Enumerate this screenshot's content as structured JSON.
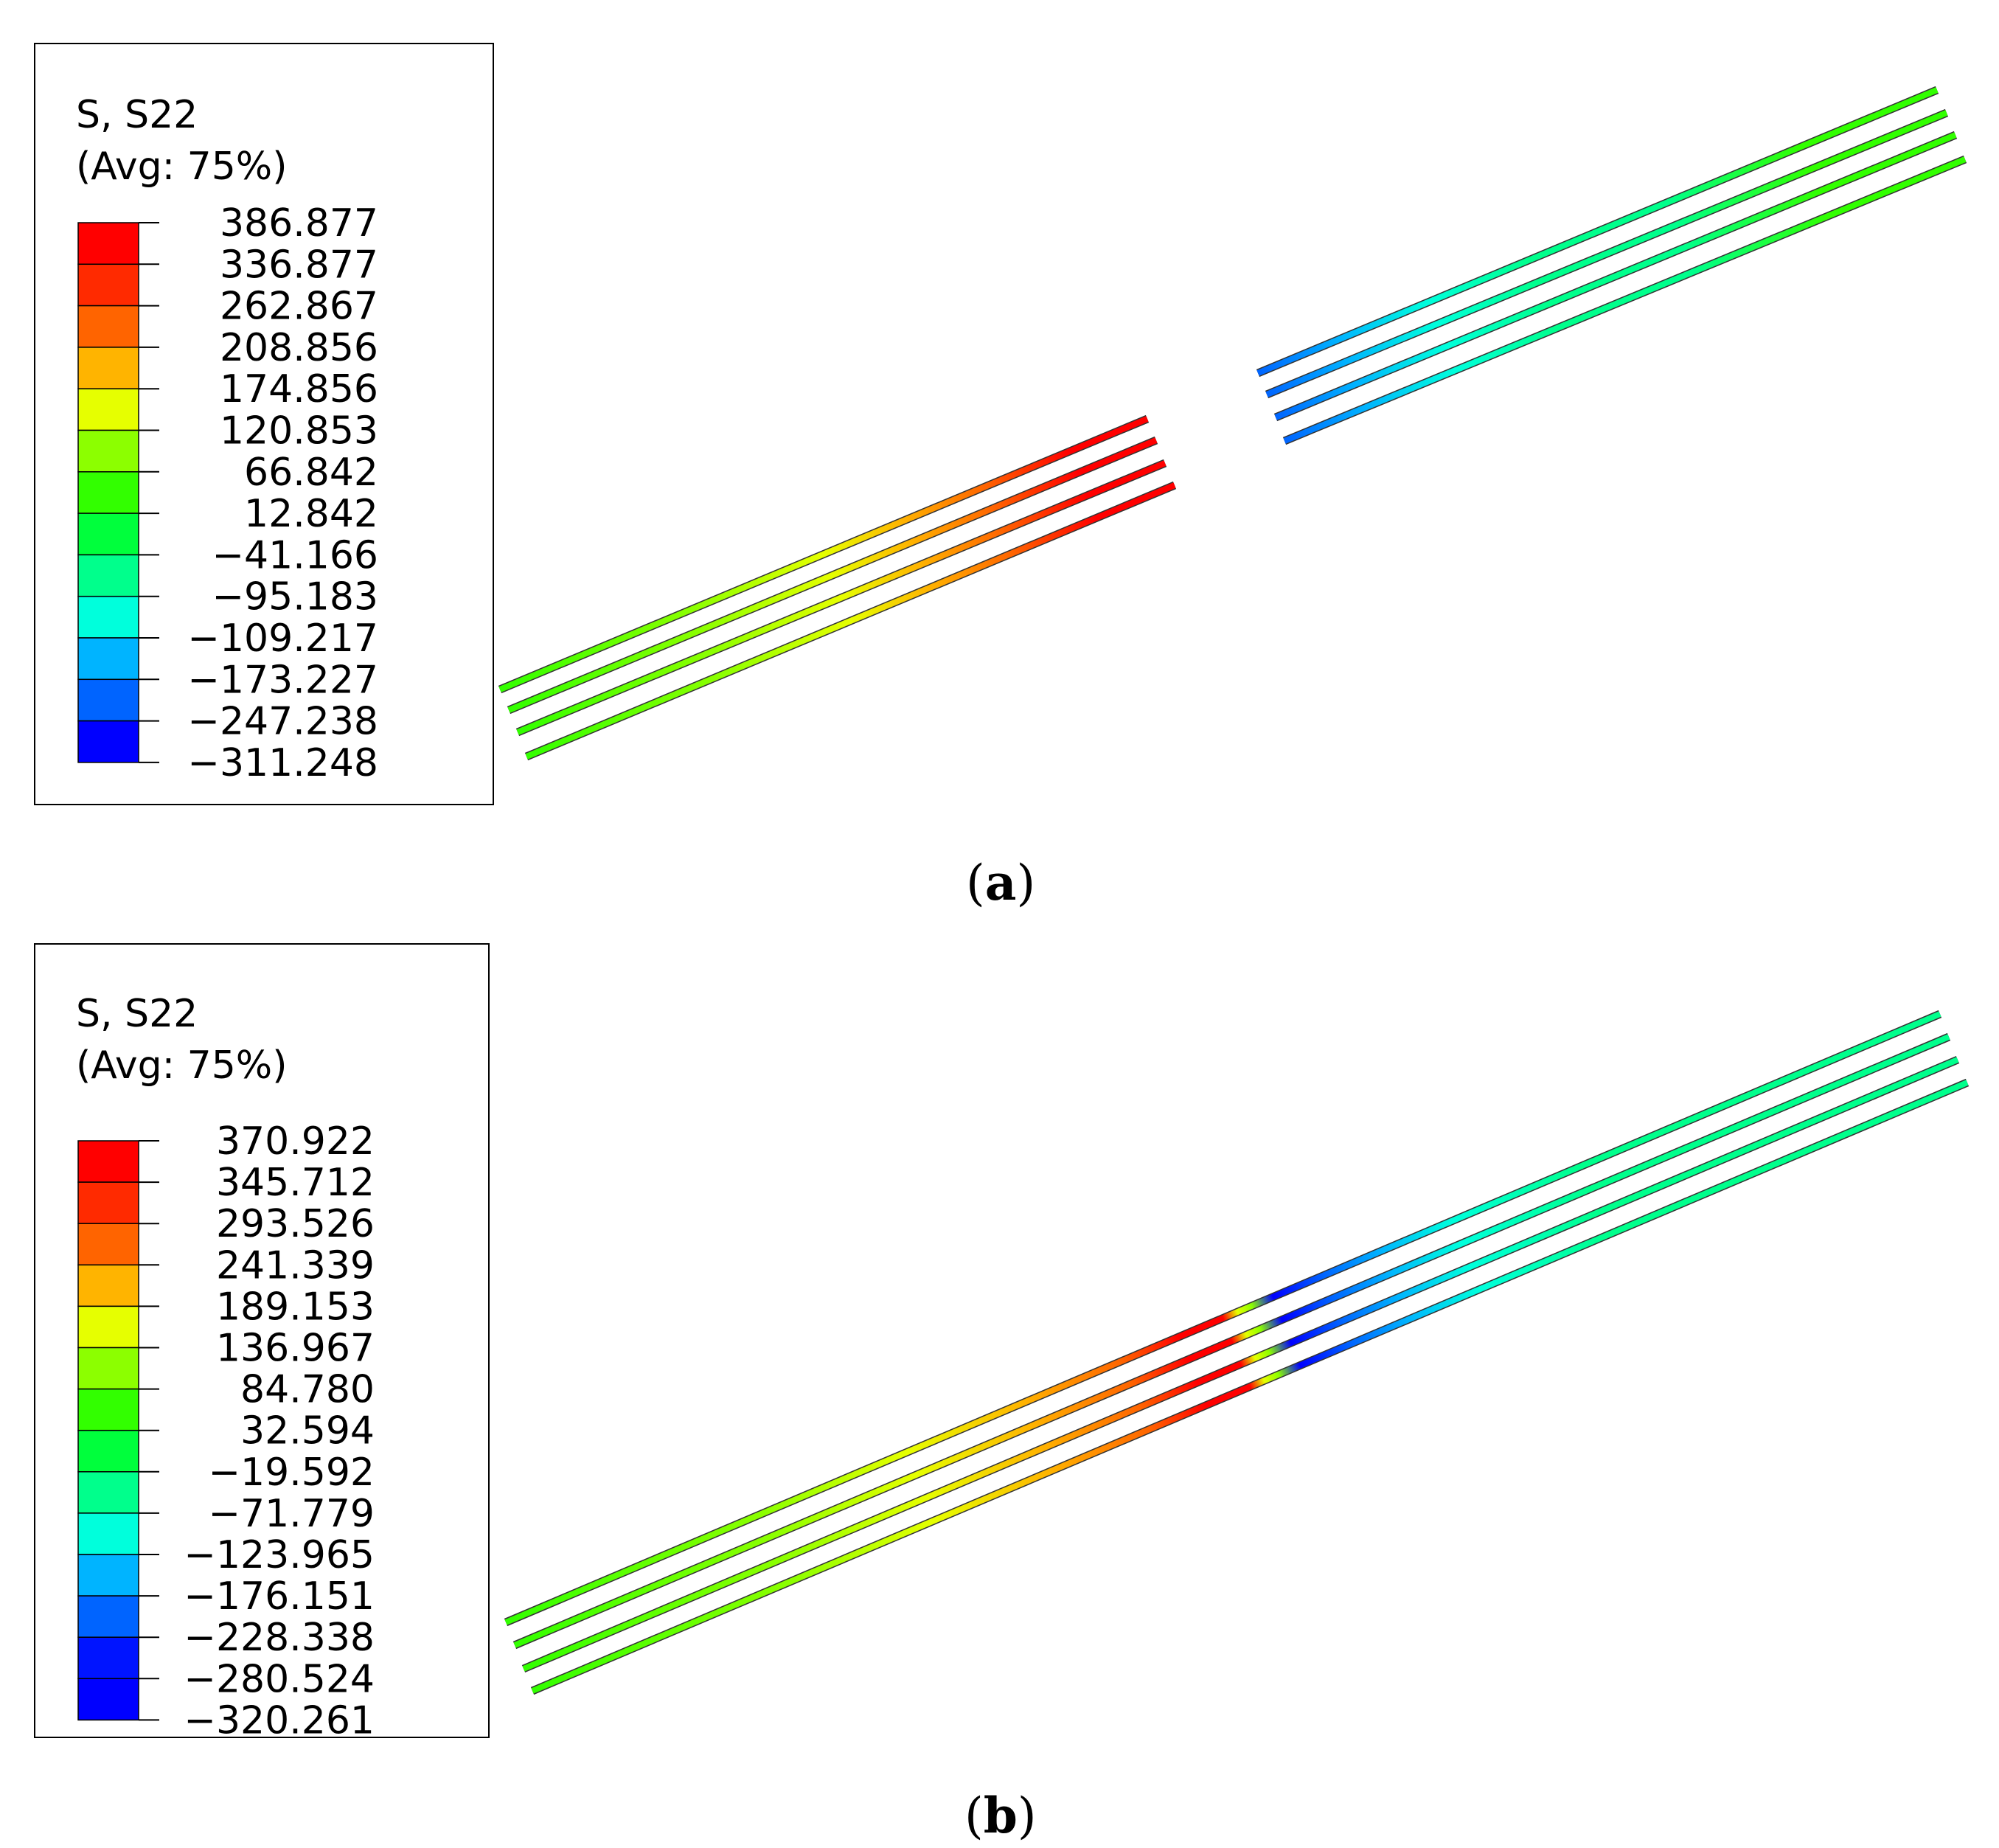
{
  "panels": [
    {
      "id": "a",
      "caption_letter": "a",
      "legend": {
        "title_line1": "S, S22",
        "title_line2": "(Avg: 75%)",
        "labels": [
          "386.877",
          "336.877",
          "262.867",
          "208.856",
          "174.856",
          "120.853",
          "66.842",
          "12.842",
          "−41.166",
          "−95.183",
          "−109.217",
          "−173.227",
          "−247.238",
          "−311.248"
        ],
        "colors": [
          "#ff0000",
          "#ff2a00",
          "#ff6400",
          "#ffb400",
          "#e6ff00",
          "#8cff00",
          "#32ff00",
          "#00ff3c",
          "#00ff8c",
          "#00ffdc",
          "#00b4ff",
          "#0064ff",
          "#0000ff"
        ]
      }
    },
    {
      "id": "b",
      "caption_letter": "b",
      "legend": {
        "title_line1": "S, S22",
        "title_line2": "(Avg: 75%)",
        "labels": [
          "370.922",
          "345.712",
          "293.526",
          "241.339",
          "189.153",
          "136.967",
          "84.780",
          "32.594",
          "−19.592",
          "−71.779",
          "−123.965",
          "−176.151",
          "−228.338",
          "−280.524",
          "−320.261"
        ],
        "colors": [
          "#ff0000",
          "#ff2a00",
          "#ff6400",
          "#ffb400",
          "#e6ff00",
          "#8cff00",
          "#32ff00",
          "#00ff3c",
          "#00ff8c",
          "#00ffdc",
          "#00b4ff",
          "#0064ff",
          "#0014ff",
          "#0000ff"
        ]
      }
    }
  ],
  "palette": {
    "green": "#32ff00",
    "lime": "#8cff00",
    "yellow": "#e6ff00",
    "orange": "#ffb400",
    "dark_orange": "#ff6400",
    "red": "#ff0000",
    "spring_green": "#00ff8c",
    "cyan": "#00ffdc",
    "light_blue": "#00b4ff",
    "blue": "#0064ff",
    "deep_blue": "#0000ff"
  }
}
